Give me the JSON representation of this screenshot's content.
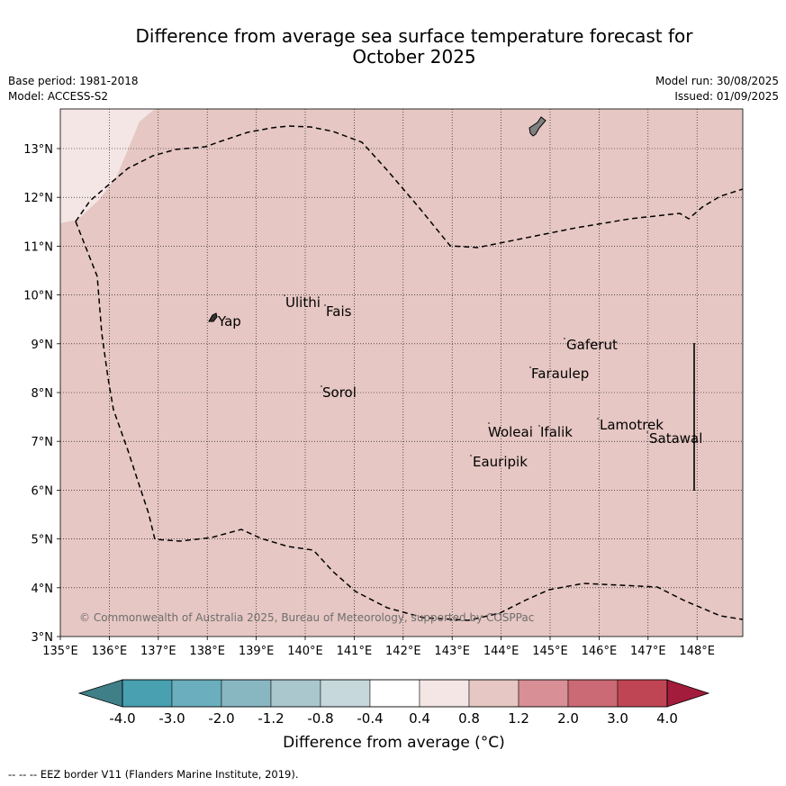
{
  "header": {
    "title_line1": "Difference from average sea surface temperature forecast for",
    "title_line2": "October 2025",
    "base_period": "Base period: 1981-2018",
    "model": "Model: ACCESS-S2",
    "model_run": "Model run: 30/08/2025",
    "issued": "Issued: 01/09/2025"
  },
  "map": {
    "lon_ticks": [
      "135°E",
      "136°E",
      "137°E",
      "138°E",
      "139°E",
      "140°E",
      "141°E",
      "142°E",
      "143°E",
      "144°E",
      "145°E",
      "146°E",
      "147°E",
      "148°E"
    ],
    "lat_ticks": [
      "3°N",
      "4°N",
      "5°N",
      "6°N",
      "7°N",
      "8°N",
      "9°N",
      "10°N",
      "11°N",
      "12°N",
      "13°N"
    ],
    "places": [
      {
        "name": "Yap"
      },
      {
        "name": "Ulithi"
      },
      {
        "name": "Fais"
      },
      {
        "name": "Gaferut"
      },
      {
        "name": "Faraulep"
      },
      {
        "name": "Sorol"
      },
      {
        "name": "Lamotrek"
      },
      {
        "name": "Satawal"
      },
      {
        "name": "Woleai"
      },
      {
        "name": "Ifalik"
      },
      {
        "name": "Eauripik"
      }
    ],
    "copyright": "© Commonwealth of Australia 2025, Bureau of Meteorology, supported by COSPPac",
    "colors": {
      "anomaly_0_8_to_1_2": "#e6c7c3",
      "anomaly_0_4_to_0_8": "#f3e6e4",
      "land": "#808080"
    }
  },
  "colorbar": {
    "labels": [
      "-4.0",
      "-3.0",
      "-2.0",
      "-1.2",
      "-0.8",
      "-0.4",
      "0.4",
      "0.8",
      "1.2",
      "2.0",
      "3.0",
      "4.0"
    ],
    "colors": [
      "#3f7f88",
      "#48a0b0",
      "#6baebd",
      "#88b7c2",
      "#a9c7cd",
      "#c6d8db",
      "#ffffff",
      "#f3e6e4",
      "#e6c7c3",
      "#d88f96",
      "#cb6a74",
      "#c04554",
      "#a31c3c"
    ],
    "label": "Difference from average (°C)"
  },
  "footnote": "-- -- -- EEZ border V11 (Flanders Marine Institute, 2019)."
}
